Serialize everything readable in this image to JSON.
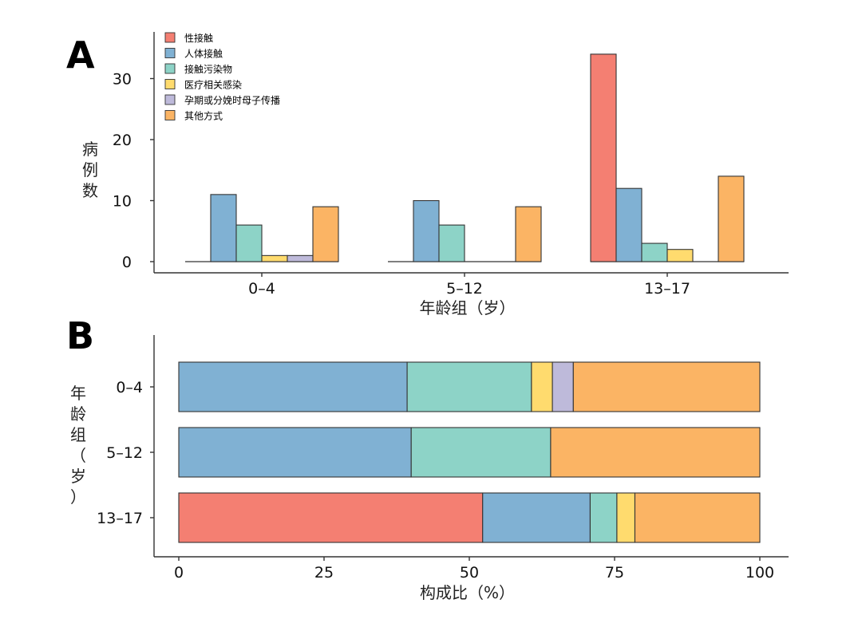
{
  "chart_data": [
    {
      "panel": "A",
      "type": "bar",
      "categories": [
        "0–4",
        "5–12",
        "13–17"
      ],
      "xlabel": "年龄组（岁）",
      "ylabel": "病例数",
      "ylim": [
        0,
        37
      ],
      "yticks": [
        0,
        10,
        20,
        30
      ],
      "legend_position": "top-left",
      "series": [
        {
          "name": "性接触",
          "color": "#F47F72",
          "values": [
            0,
            0,
            34
          ]
        },
        {
          "name": "人体接触",
          "color": "#80B1D3",
          "values": [
            11,
            10,
            12
          ]
        },
        {
          "name": "接触污染物",
          "color": "#8DD3C7",
          "values": [
            6,
            6,
            3
          ]
        },
        {
          "name": "医疗相关感染",
          "color": "#FFDB6E",
          "values": [
            1,
            0,
            2
          ]
        },
        {
          "name": "孕期或分娩时母子传播",
          "color": "#BEBADA",
          "values": [
            1,
            0,
            0
          ]
        },
        {
          "name": "其他方式",
          "color": "#FBB464",
          "values": [
            9,
            9,
            14
          ]
        }
      ]
    },
    {
      "panel": "B",
      "type": "bar",
      "orientation": "horizontal",
      "stacked": true,
      "categories": [
        "0–4",
        "5–12",
        "13–17"
      ],
      "xlabel": "构成比（%）",
      "ylabel": "年龄组（岁）",
      "xlim": [
        0,
        100
      ],
      "xticks": [
        0,
        25,
        50,
        75,
        100
      ],
      "series": [
        {
          "name": "性接触",
          "color": "#F47F72",
          "values": [
            0,
            0,
            52.3
          ]
        },
        {
          "name": "人体接触",
          "color": "#80B1D3",
          "values": [
            39.3,
            40.0,
            18.5
          ]
        },
        {
          "name": "接触污染物",
          "color": "#8DD3C7",
          "values": [
            21.4,
            24.0,
            4.6
          ]
        },
        {
          "name": "医疗相关感染",
          "color": "#FFDB6E",
          "values": [
            3.6,
            0,
            3.1
          ]
        },
        {
          "name": "孕期或分娩时母子传播",
          "color": "#BEBADA",
          "values": [
            3.6,
            0,
            0
          ]
        },
        {
          "name": "其他方式",
          "color": "#FBB464",
          "values": [
            32.1,
            36.0,
            21.5
          ]
        }
      ]
    }
  ],
  "labels": {
    "panel_a": "A",
    "panel_b": "B"
  }
}
